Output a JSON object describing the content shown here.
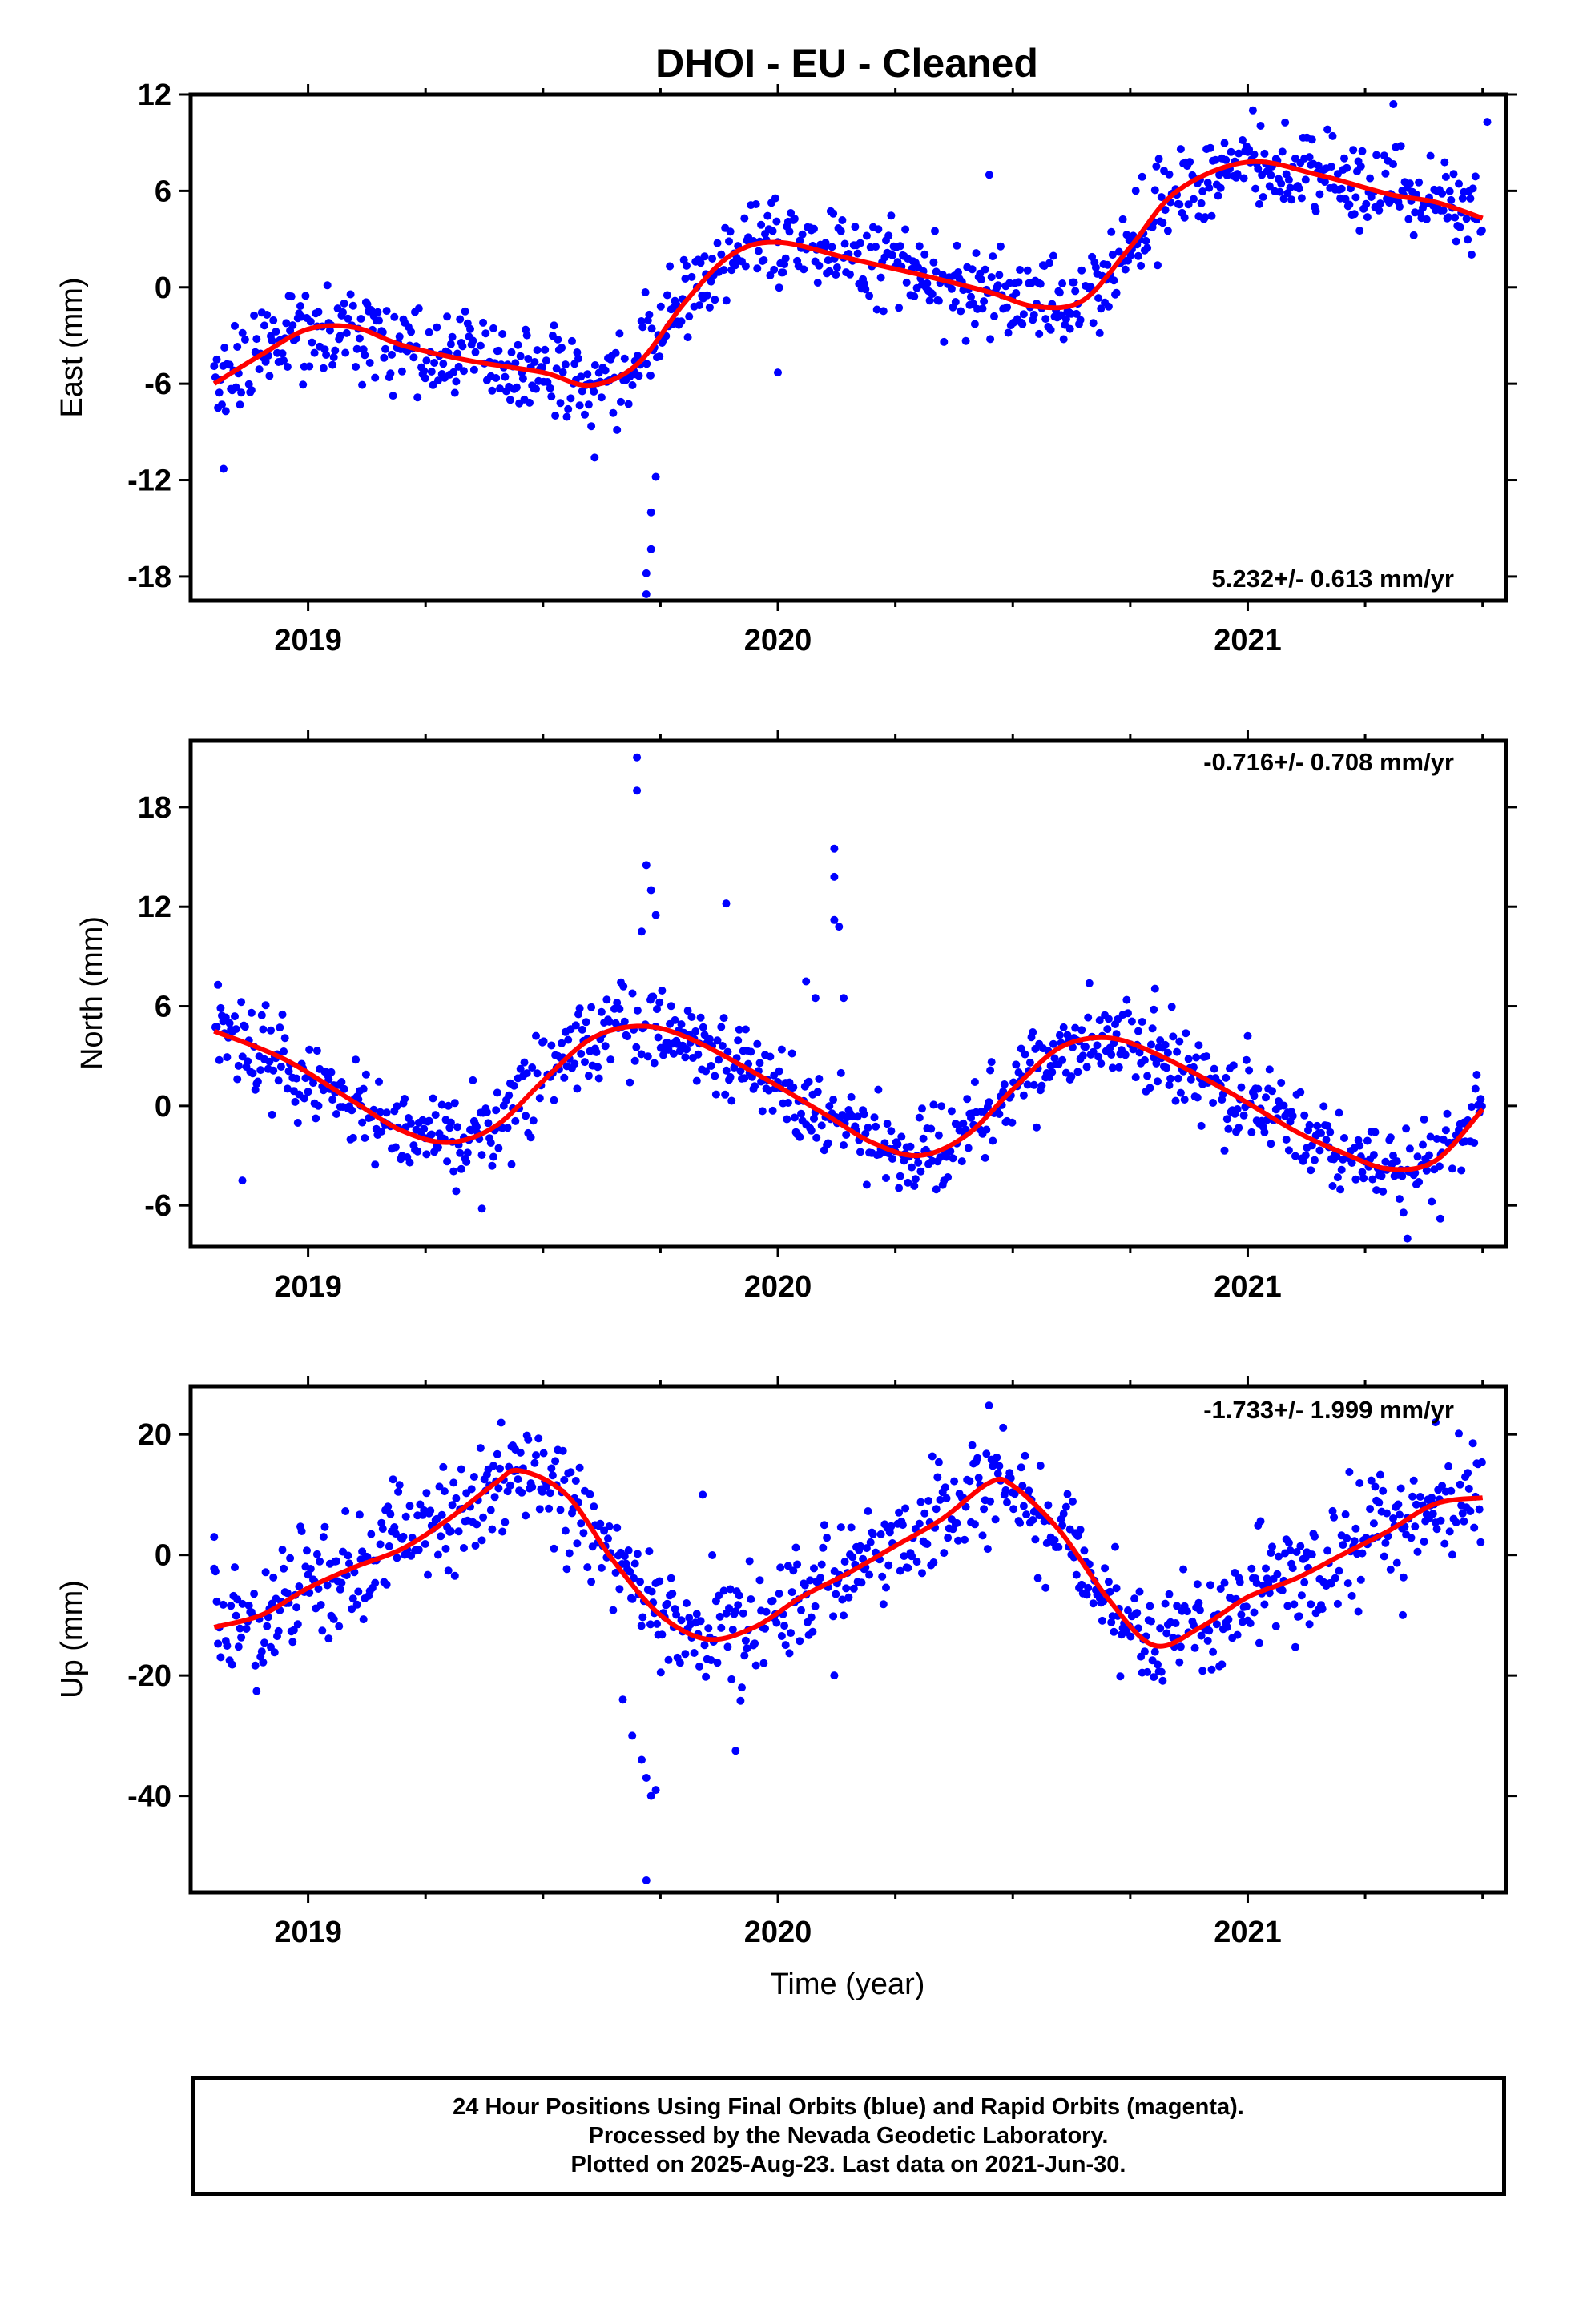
{
  "title": "DHOI  - EU - Cleaned",
  "colors": {
    "data": "#0000ff",
    "fit": "#ff0000",
    "frame": "#000000"
  },
  "x_axis_label": "Time (year)",
  "footer": {
    "line1": "24 Hour Positions Using Final Orbits (blue) and Rapid Orbits (magenta).",
    "line2": "Processed by the Nevada Geodetic Laboratory.",
    "line3": "Plotted on 2025-Aug-23. Last data on 2021-Jun-30."
  },
  "chart_data": [
    {
      "type": "scatter",
      "ylabel": "East (mm)",
      "rate_label": "5.232+/- 0.613 mm/yr",
      "xlim": [
        2018.75,
        2021.55
      ],
      "ylim": [
        -19.5,
        12
      ],
      "xticks": [
        2019,
        2020,
        2021
      ],
      "yticks": [
        -18,
        -12,
        -6,
        0,
        6,
        12
      ],
      "trend": [
        {
          "x": 2018.8,
          "y": -6.0
        },
        {
          "x": 2018.9,
          "y": -4.2
        },
        {
          "x": 2019.0,
          "y": -2.6
        },
        {
          "x": 2019.1,
          "y": -2.5
        },
        {
          "x": 2019.2,
          "y": -3.6
        },
        {
          "x": 2019.35,
          "y": -4.6
        },
        {
          "x": 2019.5,
          "y": -5.3
        },
        {
          "x": 2019.6,
          "y": -6.1
        },
        {
          "x": 2019.7,
          "y": -4.8
        },
        {
          "x": 2019.8,
          "y": -1.0
        },
        {
          "x": 2019.9,
          "y": 2.0
        },
        {
          "x": 2020.0,
          "y": 2.8
        },
        {
          "x": 2020.15,
          "y": 1.8
        },
        {
          "x": 2020.3,
          "y": 0.8
        },
        {
          "x": 2020.45,
          "y": -0.3
        },
        {
          "x": 2020.55,
          "y": -1.2
        },
        {
          "x": 2020.65,
          "y": -0.8
        },
        {
          "x": 2020.75,
          "y": 2.5
        },
        {
          "x": 2020.85,
          "y": 6.0
        },
        {
          "x": 2021.0,
          "y": 7.8
        },
        {
          "x": 2021.15,
          "y": 7.0
        },
        {
          "x": 2021.3,
          "y": 5.8
        },
        {
          "x": 2021.4,
          "y": 5.3
        },
        {
          "x": 2021.5,
          "y": 4.3
        }
      ],
      "scatter_sd": 1.4,
      "outliers": [
        {
          "x": 2018.82,
          "y": -11.3
        },
        {
          "x": 2019.61,
          "y": -10.6
        },
        {
          "x": 2019.72,
          "y": -19.1
        },
        {
          "x": 2019.72,
          "y": -17.8
        },
        {
          "x": 2019.73,
          "y": -16.3
        },
        {
          "x": 2019.73,
          "y": -14.0
        },
        {
          "x": 2019.74,
          "y": -11.8
        },
        {
          "x": 2020.0,
          "y": -5.3
        },
        {
          "x": 2020.45,
          "y": 7.0
        },
        {
          "x": 2021.31,
          "y": 11.4
        },
        {
          "x": 2021.51,
          "y": 10.3
        }
      ]
    },
    {
      "type": "scatter",
      "ylabel": "North (mm)",
      "rate_label": "-0.716+/- 0.708 mm/yr",
      "xlim": [
        2018.75,
        2021.55
      ],
      "ylim": [
        -8.5,
        22
      ],
      "xticks": [
        2019,
        2020,
        2021
      ],
      "yticks": [
        -6,
        0,
        6,
        12,
        18
      ],
      "trend": [
        {
          "x": 2018.8,
          "y": 4.5
        },
        {
          "x": 2018.95,
          "y": 2.8
        },
        {
          "x": 2019.1,
          "y": 0.2
        },
        {
          "x": 2019.2,
          "y": -1.5
        },
        {
          "x": 2019.3,
          "y": -2.2
        },
        {
          "x": 2019.4,
          "y": -1.2
        },
        {
          "x": 2019.5,
          "y": 1.5
        },
        {
          "x": 2019.6,
          "y": 4.0
        },
        {
          "x": 2019.7,
          "y": 4.8
        },
        {
          "x": 2019.8,
          "y": 4.2
        },
        {
          "x": 2019.95,
          "y": 2.0
        },
        {
          "x": 2020.1,
          "y": -0.5
        },
        {
          "x": 2020.2,
          "y": -2.2
        },
        {
          "x": 2020.3,
          "y": -3.0
        },
        {
          "x": 2020.4,
          "y": -1.8
        },
        {
          "x": 2020.5,
          "y": 1.0
        },
        {
          "x": 2020.6,
          "y": 3.5
        },
        {
          "x": 2020.7,
          "y": 4.1
        },
        {
          "x": 2020.8,
          "y": 3.2
        },
        {
          "x": 2020.95,
          "y": 1.0
        },
        {
          "x": 2021.1,
          "y": -1.5
        },
        {
          "x": 2021.2,
          "y": -2.8
        },
        {
          "x": 2021.3,
          "y": -3.8
        },
        {
          "x": 2021.4,
          "y": -3.3
        },
        {
          "x": 2021.5,
          "y": -0.2
        }
      ],
      "scatter_sd": 1.3,
      "outliers": [
        {
          "x": 2018.86,
          "y": -4.5
        },
        {
          "x": 2019.37,
          "y": -6.2
        },
        {
          "x": 2019.7,
          "y": 21.0
        },
        {
          "x": 2019.7,
          "y": 19.0
        },
        {
          "x": 2019.72,
          "y": 14.5
        },
        {
          "x": 2019.73,
          "y": 13.0
        },
        {
          "x": 2019.71,
          "y": 10.5
        },
        {
          "x": 2019.74,
          "y": 11.5
        },
        {
          "x": 2019.89,
          "y": 12.2
        },
        {
          "x": 2020.06,
          "y": 7.5
        },
        {
          "x": 2020.08,
          "y": 6.5
        },
        {
          "x": 2020.12,
          "y": 15.5
        },
        {
          "x": 2020.12,
          "y": 13.8
        },
        {
          "x": 2020.12,
          "y": 11.2
        },
        {
          "x": 2020.13,
          "y": 10.8
        },
        {
          "x": 2020.14,
          "y": 6.5
        },
        {
          "x": 2020.8,
          "y": 5.8
        },
        {
          "x": 2021.0,
          "y": 4.2
        },
        {
          "x": 2021.41,
          "y": -6.8
        },
        {
          "x": 2021.34,
          "y": -8.0
        }
      ]
    },
    {
      "type": "scatter",
      "ylabel": "Up (mm)",
      "rate_label": "-1.733+/- 1.999 mm/yr",
      "xlim": [
        2018.75,
        2021.55
      ],
      "ylim": [
        -56,
        28
      ],
      "xticks": [
        2019,
        2020,
        2021
      ],
      "yticks": [
        -40,
        -20,
        0,
        20
      ],
      "trend": [
        {
          "x": 2018.8,
          "y": -12.0
        },
        {
          "x": 2018.9,
          "y": -10.0
        },
        {
          "x": 2019.0,
          "y": -5.5
        },
        {
          "x": 2019.1,
          "y": -2.0
        },
        {
          "x": 2019.2,
          "y": 1.0
        },
        {
          "x": 2019.3,
          "y": 6.0
        },
        {
          "x": 2019.4,
          "y": 12.0
        },
        {
          "x": 2019.45,
          "y": 14.0
        },
        {
          "x": 2019.55,
          "y": 10.0
        },
        {
          "x": 2019.65,
          "y": -1.0
        },
        {
          "x": 2019.75,
          "y": -10.0
        },
        {
          "x": 2019.85,
          "y": -14.0
        },
        {
          "x": 2019.95,
          "y": -12.0
        },
        {
          "x": 2020.05,
          "y": -7.0
        },
        {
          "x": 2020.15,
          "y": -3.0
        },
        {
          "x": 2020.25,
          "y": 1.5
        },
        {
          "x": 2020.35,
          "y": 6.0
        },
        {
          "x": 2020.45,
          "y": 12.0
        },
        {
          "x": 2020.5,
          "y": 11.5
        },
        {
          "x": 2020.6,
          "y": 4.0
        },
        {
          "x": 2020.7,
          "y": -7.0
        },
        {
          "x": 2020.8,
          "y": -15.0
        },
        {
          "x": 2020.9,
          "y": -12.0
        },
        {
          "x": 2021.0,
          "y": -7.0
        },
        {
          "x": 2021.1,
          "y": -4.0
        },
        {
          "x": 2021.2,
          "y": 0.0
        },
        {
          "x": 2021.3,
          "y": 4.0
        },
        {
          "x": 2021.4,
          "y": 8.5
        },
        {
          "x": 2021.5,
          "y": 9.5
        }
      ],
      "scatter_sd": 4.5,
      "outliers": [
        {
          "x": 2019.67,
          "y": -24.0
        },
        {
          "x": 2019.69,
          "y": -30.0
        },
        {
          "x": 2019.71,
          "y": -34.0
        },
        {
          "x": 2019.72,
          "y": -37.0
        },
        {
          "x": 2019.73,
          "y": -40.0
        },
        {
          "x": 2019.74,
          "y": -39.0
        },
        {
          "x": 2019.72,
          "y": -54.0
        },
        {
          "x": 2019.91,
          "y": -32.5
        },
        {
          "x": 2019.84,
          "y": 10.0
        },
        {
          "x": 2020.12,
          "y": -20.0
        },
        {
          "x": 2021.33,
          "y": -10.0
        },
        {
          "x": 2021.4,
          "y": 22.0
        },
        {
          "x": 2018.8,
          "y": 3.0
        }
      ]
    }
  ]
}
